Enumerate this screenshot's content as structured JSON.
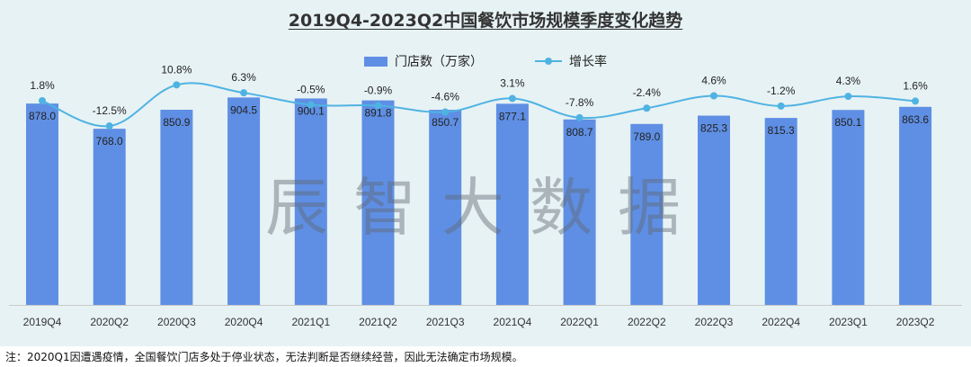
{
  "chart_data": {
    "type": "bar",
    "title": "2019Q4-2023Q2中国餐饮市场规模季度变化趋势",
    "categories": [
      "2019Q4",
      "2020Q2",
      "2020Q3",
      "2020Q4",
      "2021Q1",
      "2021Q2",
      "2021Q3",
      "2021Q4",
      "2022Q1",
      "2022Q2",
      "2022Q3",
      "2022Q4",
      "2023Q1",
      "2023Q2"
    ],
    "series": [
      {
        "name": "门店数（万家）",
        "kind": "bar",
        "color": "#5f8fe4",
        "values": [
          878.0,
          768.0,
          850.9,
          904.5,
          900.1,
          891.8,
          850.7,
          877.1,
          808.7,
          789.0,
          825.3,
          815.3,
          850.1,
          863.6
        ],
        "labels": [
          "878.0",
          "768.0",
          "850.9",
          "904.5",
          "900.1",
          "891.8",
          "850.7",
          "877.1",
          "808.7",
          "789.0",
          "825.3",
          "815.3",
          "850.1",
          "863.6"
        ]
      },
      {
        "name": "增长率",
        "kind": "line",
        "color": "#4fb3e2",
        "values": [
          1.8,
          -12.5,
          10.8,
          6.3,
          -0.5,
          -0.9,
          -4.6,
          3.1,
          -7.8,
          -2.4,
          4.6,
          -1.2,
          4.3,
          1.6
        ],
        "labels": [
          "1.8%",
          "-12.5%",
          "10.8%",
          "6.3%",
          "-0.5%",
          "-0.9%",
          "-4.6%",
          "3.1%",
          "-7.8%",
          "-2.4%",
          "4.6%",
          "-1.2%",
          "4.3%",
          "1.6%"
        ]
      }
    ],
    "ylim_bar": [
      0,
      1000
    ],
    "ylim_line": [
      -14,
      12
    ],
    "legend_position": "top",
    "grid": false
  },
  "watermark": "辰智大数据",
  "footnote": "注：2020Q1因遭遇疫情，全国餐饮门店多处于停业状态，无法判断是否继续经营，因此无法确定市场规模。"
}
